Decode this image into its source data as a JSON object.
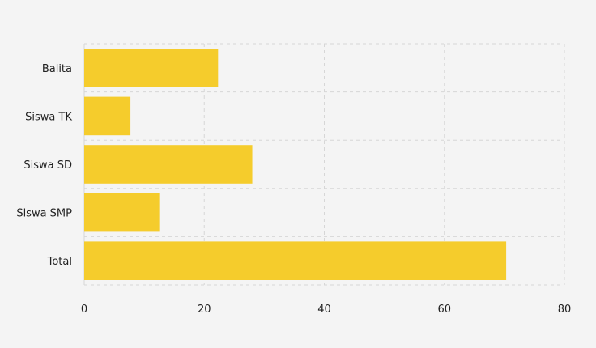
{
  "chart_data": {
    "type": "bar",
    "orientation": "horizontal",
    "categories": [
      "Balita",
      "Siswa TK",
      "Siswa SD",
      "Siswa SMP",
      "Total"
    ],
    "values": [
      22.3,
      7.7,
      28,
      12.5,
      70.3
    ],
    "xlim": [
      0,
      80
    ],
    "xticks": [
      "0",
      "20",
      "40",
      "60",
      "80"
    ],
    "grid": true,
    "legend": "none",
    "bar_color": "#f5cc2c",
    "background_color": "#f4f4f4",
    "grid_color": "#d6d6d6"
  }
}
